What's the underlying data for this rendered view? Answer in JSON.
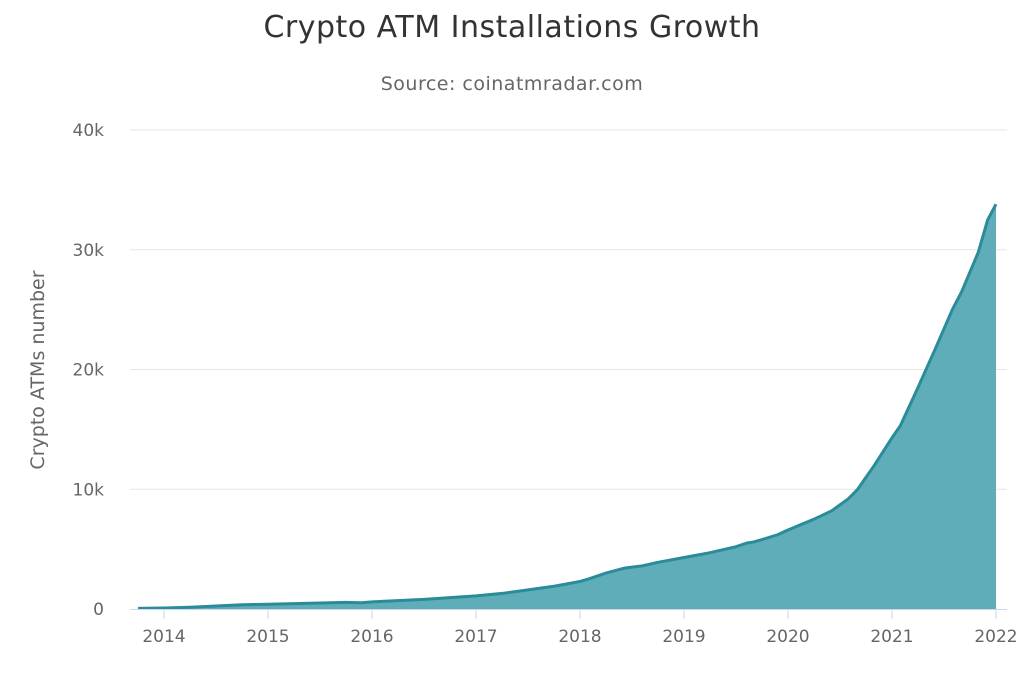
{
  "chart_data": {
    "type": "area",
    "title": "Crypto ATM Installations Growth",
    "subtitle": "Source: coinatmradar.com",
    "xlabel": "",
    "ylabel": "Crypto ATMs number",
    "xlim": [
      2013.7,
      2022.15
    ],
    "ylim": [
      0,
      40000
    ],
    "y_ticks": [
      0,
      10000,
      20000,
      30000,
      40000
    ],
    "y_tick_labels": [
      "0",
      "10k",
      "20k",
      "30k",
      "40k"
    ],
    "x_ticks": [
      2014,
      2015,
      2016,
      2017,
      2018,
      2019,
      2020,
      2021,
      2022
    ],
    "x_tick_labels": [
      "2014",
      "2015",
      "2016",
      "2017",
      "2018",
      "2019",
      "2020",
      "2021",
      "2022"
    ],
    "grid": true,
    "legend": false,
    "color": "#2a8b99",
    "fill_color": "#5fadb8",
    "series": [
      {
        "x": [
          2013.75,
          2014.0,
          2014.25,
          2014.5,
          2014.75,
          2015.0,
          2015.25,
          2015.5,
          2015.75,
          2015.9,
          2016.0,
          2016.25,
          2016.5,
          2016.75,
          2017.0,
          2017.25,
          2017.5,
          2017.75,
          2018.0,
          2018.08,
          2018.25,
          2018.42,
          2018.5,
          2018.6,
          2018.75,
          2019.0,
          2019.25,
          2019.5,
          2019.6,
          2019.67,
          2019.75,
          2019.9,
          2020.0,
          2020.25,
          2020.42,
          2020.58,
          2020.67,
          2020.75,
          2020.83,
          2021.0,
          2021.08,
          2021.25,
          2021.42,
          2021.58,
          2021.67,
          2021.83,
          2021.92,
          2022.0
        ],
        "y": [
          50,
          80,
          150,
          250,
          350,
          400,
          450,
          500,
          550,
          520,
          600,
          700,
          800,
          950,
          1100,
          1300,
          1600,
          1900,
          2300,
          2500,
          3000,
          3400,
          3500,
          3600,
          3900,
          4300,
          4700,
          5200,
          5500,
          5600,
          5800,
          6200,
          6600,
          7500,
          8200,
          9200,
          10000,
          11000,
          12000,
          14300,
          15300,
          18500,
          21800,
          25000,
          26500,
          29800,
          32500,
          33800
        ]
      }
    ]
  }
}
